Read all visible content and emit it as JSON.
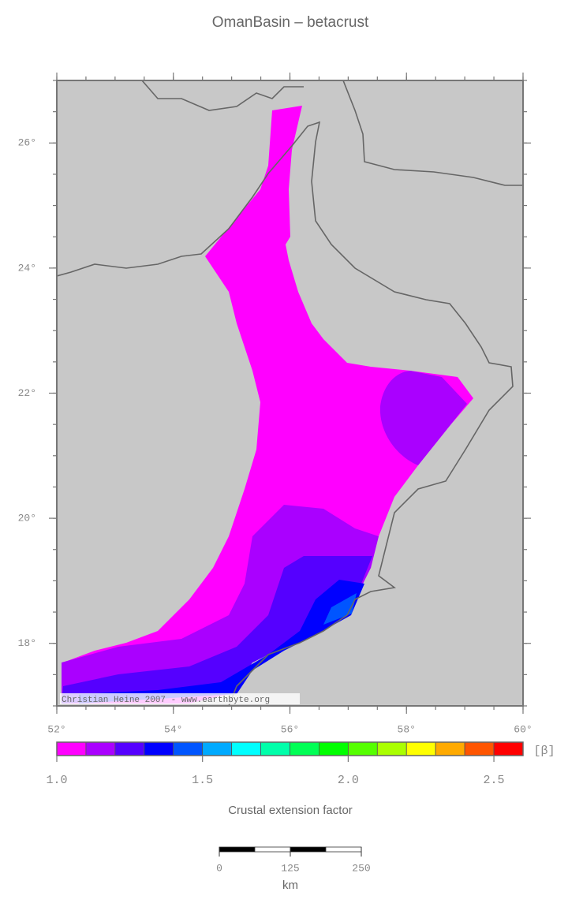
{
  "title": "OmanBasin – betacrust",
  "map": {
    "lonlim": [
      52,
      60
    ],
    "latlim": [
      17,
      27
    ],
    "lon_ticks": [
      {
        "value": 52,
        "label": "52°"
      },
      {
        "value": 54,
        "label": "54°"
      },
      {
        "value": 56,
        "label": "56°"
      },
      {
        "value": 58,
        "label": "58°"
      },
      {
        "value": 60,
        "label": "60°"
      }
    ],
    "lat_ticks": [
      {
        "value": 18,
        "label": "18°"
      },
      {
        "value": 20,
        "label": "20°"
      },
      {
        "value": 22,
        "label": "22°"
      },
      {
        "value": 24,
        "label": "24°"
      },
      {
        "value": 26,
        "label": "26°"
      }
    ]
  },
  "colorbar": {
    "bins": [
      1.0,
      1.1,
      1.2,
      1.3,
      1.4,
      1.5,
      1.6,
      1.7,
      1.8,
      1.9,
      2.0,
      2.1,
      2.2,
      2.3,
      2.4,
      2.5,
      2.6
    ],
    "colors": [
      "#ff00ff",
      "#aa00ff",
      "#5500ff",
      "#0000ff",
      "#0055ff",
      "#00aaff",
      "#00ffff",
      "#00ffaa",
      "#00ff55",
      "#00ff00",
      "#55ff00",
      "#aaff00",
      "#ffff00",
      "#ffaa00",
      "#ff5500",
      "#ff0000"
    ],
    "ticks": [
      {
        "value": 1,
        "label": "1.0"
      },
      {
        "value": 1.5,
        "label": "1.5"
      },
      {
        "value": 2,
        "label": "2.0"
      },
      {
        "value": 2.5,
        "label": "2.5"
      }
    ],
    "unit": "[β]",
    "label": "Crustal extension factor"
  },
  "scale_bar": {
    "ticks": [
      0,
      125,
      250
    ],
    "unit": "km"
  },
  "credit": "Christian Heine 2007 - www.earthbyte.org"
}
